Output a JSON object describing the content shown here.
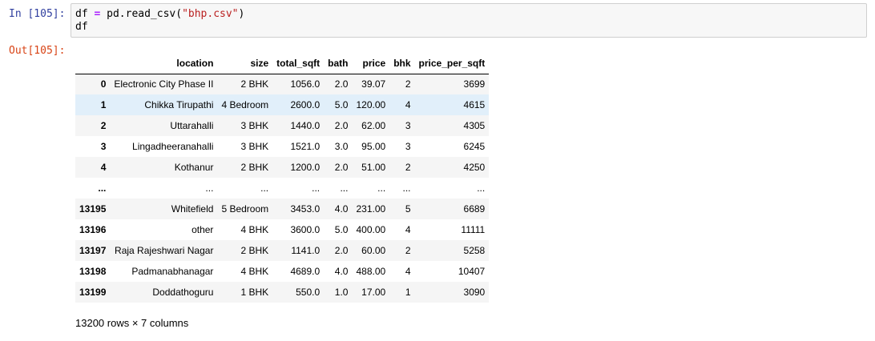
{
  "notebook": {
    "input_prompt": "In [105]:",
    "output_prompt": "Out[105]:",
    "code": {
      "line1": {
        "var": "df",
        "op": "=",
        "call": "pd.read_csv(",
        "arg": "\"bhp.csv\"",
        "close": ")"
      },
      "line2": "df"
    }
  },
  "dataframe": {
    "index_header": "",
    "columns": [
      "location",
      "size",
      "total_sqft",
      "bath",
      "price",
      "bhk",
      "price_per_sqft"
    ],
    "rows": [
      {
        "index": "0",
        "cells": [
          "Electronic City Phase II",
          "2 BHK",
          "1056.0",
          "2.0",
          "39.07",
          "2",
          "3699"
        ]
      },
      {
        "index": "1",
        "cells": [
          "Chikka Tirupathi",
          "4 Bedroom",
          "2600.0",
          "5.0",
          "120.00",
          "4",
          "4615"
        ]
      },
      {
        "index": "2",
        "cells": [
          "Uttarahalli",
          "3 BHK",
          "1440.0",
          "2.0",
          "62.00",
          "3",
          "4305"
        ]
      },
      {
        "index": "3",
        "cells": [
          "Lingadheeranahalli",
          "3 BHK",
          "1521.0",
          "3.0",
          "95.00",
          "3",
          "6245"
        ]
      },
      {
        "index": "4",
        "cells": [
          "Kothanur",
          "2 BHK",
          "1200.0",
          "2.0",
          "51.00",
          "2",
          "4250"
        ]
      },
      {
        "index": "...",
        "cells": [
          "...",
          "...",
          "...",
          "...",
          "...",
          "...",
          "..."
        ]
      },
      {
        "index": "13195",
        "cells": [
          "Whitefield",
          "5 Bedroom",
          "3453.0",
          "4.0",
          "231.00",
          "5",
          "6689"
        ]
      },
      {
        "index": "13196",
        "cells": [
          "other",
          "4 BHK",
          "3600.0",
          "5.0",
          "400.00",
          "4",
          "11111"
        ]
      },
      {
        "index": "13197",
        "cells": [
          "Raja Rajeshwari Nagar",
          "2 BHK",
          "1141.0",
          "2.0",
          "60.00",
          "2",
          "5258"
        ]
      },
      {
        "index": "13198",
        "cells": [
          "Padmanabhanagar",
          "4 BHK",
          "4689.0",
          "4.0",
          "488.00",
          "4",
          "10407"
        ]
      },
      {
        "index": "13199",
        "cells": [
          "Doddathoguru",
          "1 BHK",
          "550.0",
          "1.0",
          "17.00",
          "1",
          "3090"
        ]
      }
    ],
    "hovered_row_index": "1",
    "summary": "13200 rows × 7 columns"
  }
}
